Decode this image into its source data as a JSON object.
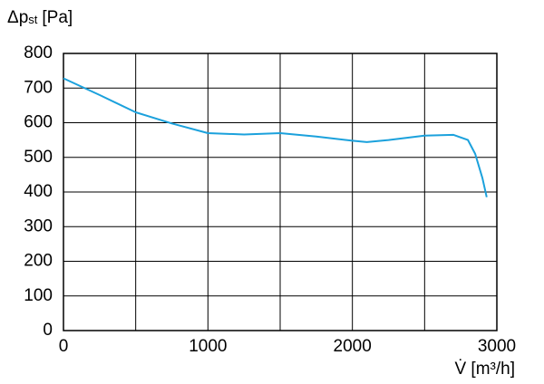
{
  "chart_data": {
    "type": "line",
    "y_label": {
      "main": "Δp",
      "sub": "st",
      "unit": "[Pa]"
    },
    "x_label": "V̇ [m³/h]",
    "x": [
      0,
      250,
      500,
      750,
      1000,
      1250,
      1500,
      1750,
      2000,
      2100,
      2250,
      2500,
      2700,
      2800,
      2850,
      2900,
      2930
    ],
    "series": [
      {
        "name": "Δpst",
        "color": "#1ba1dc",
        "values": [
          728,
          680,
          630,
          598,
          570,
          566,
          570,
          560,
          548,
          544,
          550,
          563,
          565,
          550,
          510,
          440,
          385
        ]
      }
    ],
    "xlim": [
      0,
      3000
    ],
    "xticks": [
      0,
      1000,
      2000,
      3000
    ],
    "x_minor_grid": [
      500,
      1500,
      2500
    ],
    "ylim": [
      0,
      800
    ],
    "yticks": [
      0,
      100,
      200,
      300,
      400,
      500,
      600,
      700,
      800
    ],
    "grid": true,
    "legend": false
  }
}
